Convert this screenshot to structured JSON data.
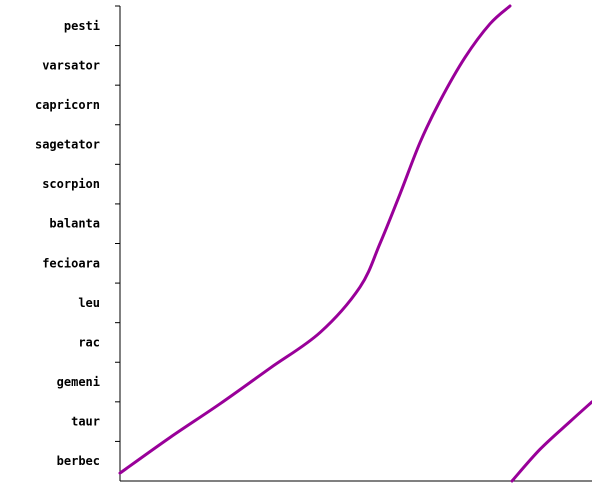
{
  "chart_data": {
    "type": "line",
    "title": "",
    "xlabel": "",
    "ylabel": "",
    "y_categories": [
      "berbec",
      "taur",
      "gemeni",
      "rac",
      "leu",
      "fecioara",
      "balanta",
      "scorpion",
      "sagetator",
      "capricorn",
      "varsator",
      "pesti"
    ],
    "ylim": [
      0,
      12
    ],
    "xlim": [
      0,
      472
    ],
    "grid": false,
    "legend": "none",
    "series": [
      {
        "color": "#990099",
        "segments": [
          [
            [
              0,
              0.2
            ],
            [
              50,
              1.1
            ],
            [
              100,
              1.95
            ],
            [
              150,
              2.85
            ],
            [
              200,
              3.75
            ],
            [
              240,
              4.9
            ],
            [
              260,
              6.0
            ],
            [
              280,
              7.25
            ],
            [
              300,
              8.55
            ],
            [
              320,
              9.6
            ],
            [
              345,
              10.7
            ],
            [
              370,
              11.55
            ],
            [
              390,
              12.0
            ]
          ],
          [
            [
              392,
              0.0
            ],
            [
              420,
              0.8
            ],
            [
              450,
              1.5
            ],
            [
              472,
              2.0
            ]
          ]
        ]
      }
    ]
  }
}
